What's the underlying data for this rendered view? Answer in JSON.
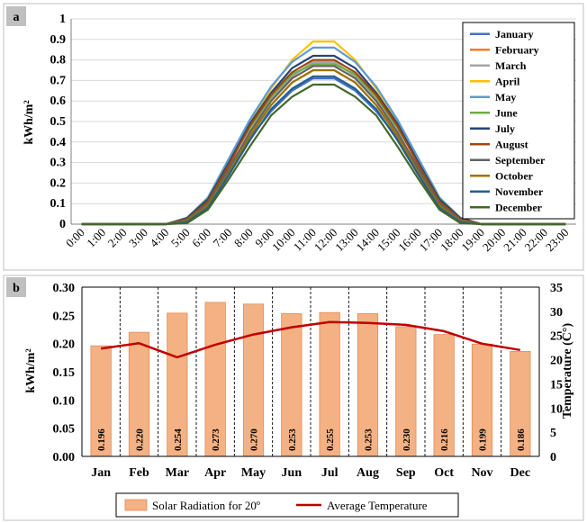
{
  "chart_data": [
    {
      "panel": "a",
      "type": "line",
      "ylabel": "kWh/m²",
      "ylim": [
        0,
        1
      ],
      "yticks": [
        "0",
        "0.1",
        "0.2",
        "0.3",
        "0.4",
        "0.5",
        "0.6",
        "0.7",
        "0.8",
        "0.9",
        "1"
      ],
      "x": [
        "0:00",
        "1:00",
        "2:00",
        "3:00",
        "4:00",
        "5:00",
        "6:00",
        "7:00",
        "8:00",
        "9:00",
        "10:00",
        "11:00",
        "12:00",
        "13:00",
        "14:00",
        "15:00",
        "16:00",
        "17:00",
        "18:00",
        "19:00",
        "20:00",
        "21:00",
        "22:00",
        "23:00"
      ],
      "legend_position": "top-right",
      "series": [
        {
          "name": "January",
          "color": "#4472c4",
          "values": [
            0,
            0,
            0,
            0,
            0,
            0.01,
            0.09,
            0.26,
            0.42,
            0.55,
            0.65,
            0.71,
            0.71,
            0.65,
            0.55,
            0.42,
            0.26,
            0.09,
            0.01,
            0,
            0,
            0,
            0,
            0
          ]
        },
        {
          "name": "February",
          "color": "#ed7d31",
          "values": [
            0,
            0,
            0,
            0,
            0,
            0.015,
            0.1,
            0.28,
            0.44,
            0.58,
            0.69,
            0.75,
            0.75,
            0.69,
            0.58,
            0.44,
            0.28,
            0.1,
            0.015,
            0,
            0,
            0,
            0,
            0
          ]
        },
        {
          "name": "March",
          "color": "#a5a5a5",
          "values": [
            0,
            0,
            0,
            0,
            0,
            0.02,
            0.11,
            0.3,
            0.47,
            0.61,
            0.72,
            0.79,
            0.79,
            0.72,
            0.61,
            0.47,
            0.3,
            0.11,
            0.02,
            0,
            0,
            0,
            0,
            0
          ]
        },
        {
          "name": "April",
          "color": "#ffc000",
          "values": [
            0,
            0,
            0,
            0,
            0,
            0.025,
            0.12,
            0.31,
            0.5,
            0.66,
            0.8,
            0.89,
            0.89,
            0.8,
            0.66,
            0.5,
            0.31,
            0.12,
            0.025,
            0,
            0,
            0,
            0,
            0
          ]
        },
        {
          "name": "May",
          "color": "#5b9bd5",
          "values": [
            0,
            0,
            0,
            0,
            0,
            0.03,
            0.13,
            0.32,
            0.51,
            0.67,
            0.79,
            0.86,
            0.86,
            0.79,
            0.67,
            0.51,
            0.32,
            0.13,
            0.03,
            0,
            0,
            0,
            0,
            0
          ]
        },
        {
          "name": "June",
          "color": "#70ad47",
          "values": [
            0,
            0,
            0,
            0,
            0,
            0.03,
            0.125,
            0.3,
            0.47,
            0.62,
            0.73,
            0.78,
            0.78,
            0.73,
            0.62,
            0.47,
            0.3,
            0.125,
            0.03,
            0,
            0,
            0,
            0,
            0
          ]
        },
        {
          "name": "July",
          "color": "#264478",
          "values": [
            0,
            0,
            0,
            0,
            0,
            0.03,
            0.12,
            0.3,
            0.49,
            0.64,
            0.76,
            0.82,
            0.82,
            0.76,
            0.64,
            0.49,
            0.3,
            0.12,
            0.03,
            0,
            0,
            0,
            0,
            0
          ]
        },
        {
          "name": "August",
          "color": "#9e480e",
          "values": [
            0,
            0,
            0,
            0,
            0,
            0.025,
            0.11,
            0.29,
            0.48,
            0.63,
            0.74,
            0.8,
            0.8,
            0.74,
            0.63,
            0.48,
            0.29,
            0.11,
            0.025,
            0,
            0,
            0,
            0,
            0
          ]
        },
        {
          "name": "September",
          "color": "#636363",
          "values": [
            0,
            0,
            0,
            0,
            0,
            0.02,
            0.1,
            0.27,
            0.45,
            0.6,
            0.71,
            0.77,
            0.77,
            0.71,
            0.6,
            0.45,
            0.27,
            0.1,
            0.02,
            0,
            0,
            0,
            0,
            0
          ]
        },
        {
          "name": "October",
          "color": "#997300",
          "values": [
            0,
            0,
            0,
            0,
            0,
            0.015,
            0.09,
            0.25,
            0.43,
            0.58,
            0.69,
            0.75,
            0.75,
            0.69,
            0.58,
            0.43,
            0.25,
            0.09,
            0.015,
            0,
            0,
            0,
            0,
            0
          ]
        },
        {
          "name": "November",
          "color": "#255e91",
          "values": [
            0,
            0,
            0,
            0,
            0,
            0.01,
            0.08,
            0.24,
            0.41,
            0.56,
            0.66,
            0.72,
            0.72,
            0.66,
            0.56,
            0.41,
            0.24,
            0.08,
            0.01,
            0,
            0,
            0,
            0,
            0
          ]
        },
        {
          "name": "December",
          "color": "#43682b",
          "values": [
            0,
            0,
            0,
            0,
            0,
            0.005,
            0.07,
            0.22,
            0.38,
            0.53,
            0.62,
            0.68,
            0.68,
            0.62,
            0.53,
            0.38,
            0.22,
            0.07,
            0.005,
            0,
            0,
            0,
            0,
            0
          ]
        }
      ]
    },
    {
      "panel": "b",
      "type": "bar",
      "ylabel": "kWh/m²",
      "y2label": "Temperature (C°)",
      "ylim": [
        0,
        0.3
      ],
      "y2lim": [
        0,
        35
      ],
      "yticks": [
        "0.00",
        "0.05",
        "0.10",
        "0.15",
        "0.20",
        "0.25",
        "0.30"
      ],
      "y2ticks": [
        "0",
        "5",
        "10",
        "15",
        "20",
        "25",
        "30",
        "35"
      ],
      "categories": [
        "Jan",
        "Feb",
        "Mar",
        "Apr",
        "May",
        "Jun",
        "Jul",
        "Aug",
        "Sep",
        "Oct",
        "Nov",
        "Dec"
      ],
      "legend_position": "bottom",
      "series": [
        {
          "name": "Solar Radiation for 20º",
          "type": "bar",
          "color": "#f4b183",
          "values": [
            0.196,
            0.22,
            0.254,
            0.273,
            0.27,
            0.253,
            0.255,
            0.253,
            0.23,
            0.216,
            0.199,
            0.186
          ],
          "labels": [
            "0.196",
            "0.220",
            "0.254",
            "0.273",
            "0.270",
            "0.253",
            "0.255",
            "0.253",
            "0.230",
            "0.216",
            "0.199",
            "0.186"
          ]
        },
        {
          "name": "Average Temperature",
          "type": "line",
          "axis": "secondary",
          "color": "#c00000",
          "values": [
            22.3,
            23.4,
            20.5,
            23.1,
            25.2,
            26.7,
            27.8,
            27.6,
            27.2,
            25.9,
            23.3,
            22.0
          ]
        }
      ]
    }
  ]
}
